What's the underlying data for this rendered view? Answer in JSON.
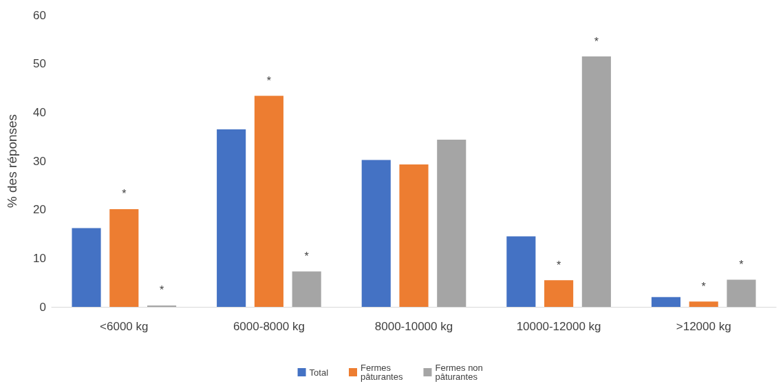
{
  "chart_data": {
    "type": "bar",
    "ylabel": "% des réponses",
    "categories": [
      "<6000 kg",
      "6000-8000 kg",
      "8000-10000 kg",
      "10000-12000 kg",
      ">12000 kg"
    ],
    "series": [
      {
        "name": "Total",
        "color": "#4472c4",
        "values": [
          16.2,
          36.5,
          30.2,
          14.5,
          2.0
        ]
      },
      {
        "name": "Fermes pâturantes",
        "color": "#ed7d31",
        "values": [
          20.1,
          43.4,
          29.3,
          5.5,
          1.1
        ],
        "value_labels": [
          "*",
          "*",
          null,
          "*",
          "*"
        ]
      },
      {
        "name": "Fermes non pâturantes",
        "color": "#a5a5a5",
        "values": [
          0.3,
          7.3,
          34.4,
          51.5,
          5.6
        ],
        "value_labels": [
          "*",
          "*",
          null,
          "*",
          "*"
        ]
      }
    ],
    "ylim": [
      0,
      60
    ],
    "yticks": [
      0,
      10,
      20,
      30,
      40,
      50,
      60
    ],
    "grid": false,
    "legend": "bottom"
  }
}
